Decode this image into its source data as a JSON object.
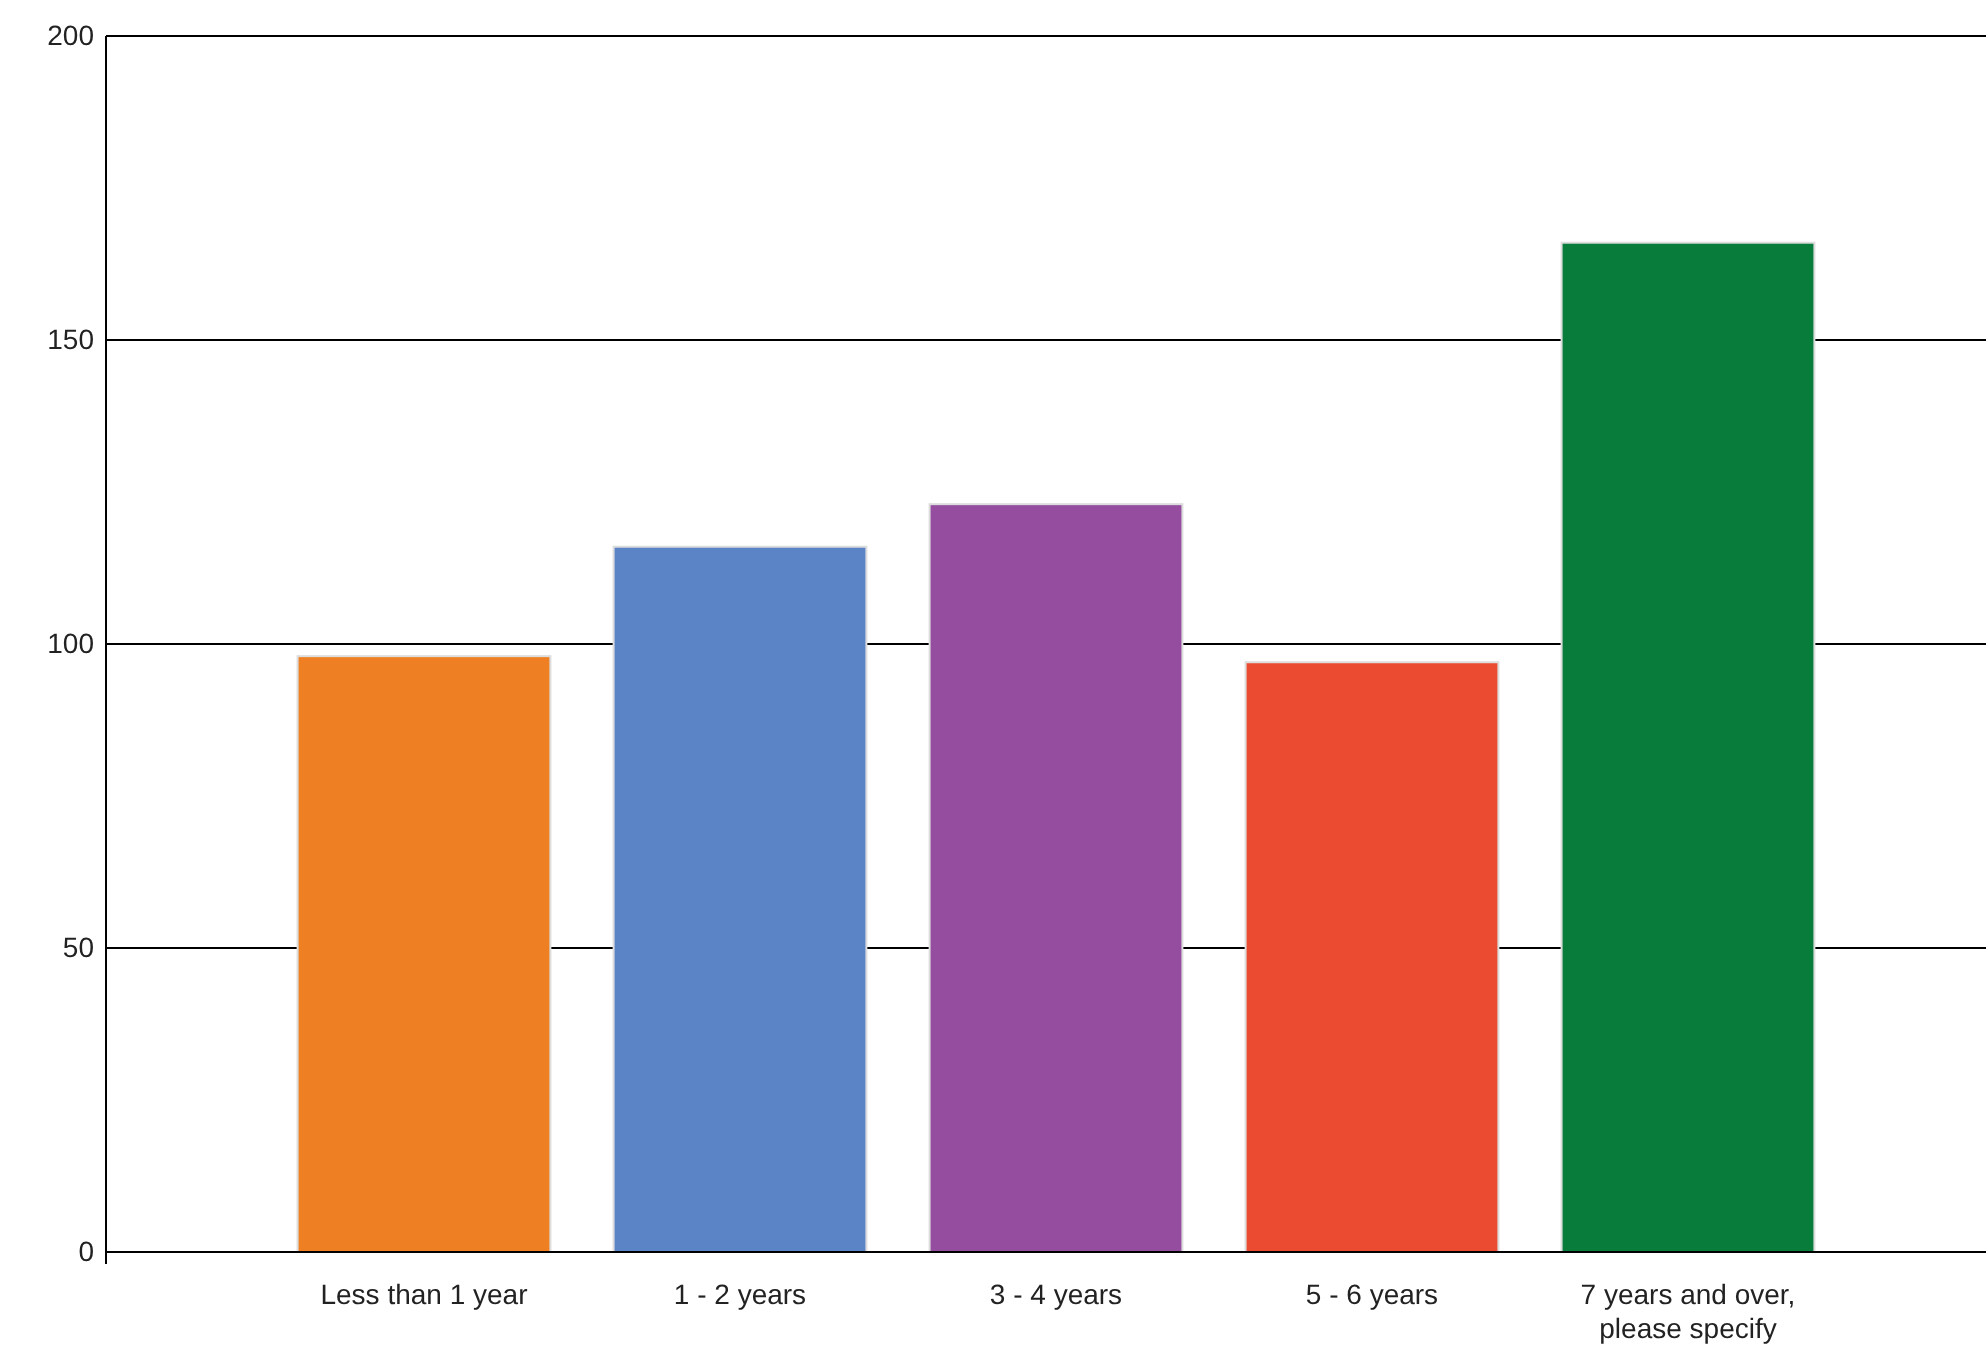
{
  "chart_data": {
    "type": "bar",
    "categories": [
      "Less than 1 year",
      "1 - 2 years",
      "3 - 4 years",
      "5 - 6 years",
      "7 years and over, please specify"
    ],
    "values": [
      98,
      116,
      123,
      97,
      166
    ],
    "colors": [
      "#ee7f22",
      "#5a84c6",
      "#944d9f",
      "#eb4b30",
      "#077c3b"
    ],
    "ylim": [
      0,
      200
    ],
    "yticks": [
      0,
      50,
      100,
      150,
      200
    ],
    "grid": "y"
  }
}
